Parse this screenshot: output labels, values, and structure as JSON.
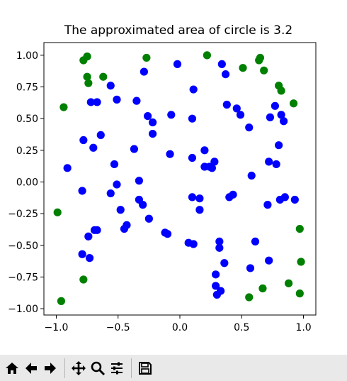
{
  "chart_data": {
    "type": "scatter",
    "title": "The approximated area of circle is 3.2",
    "xlabel": "",
    "ylabel": "",
    "xlim": [
      -1.1,
      1.1
    ],
    "ylim": [
      -1.05,
      1.1
    ],
    "xticks": [
      -1.0,
      -0.5,
      0.0,
      0.5,
      1.0
    ],
    "yticks": [
      -1.0,
      -0.75,
      -0.5,
      -0.25,
      0.0,
      0.25,
      0.5,
      0.75,
      1.0
    ],
    "xtick_labels": [
      "−1.0",
      "−0.5",
      "0.0",
      "0.5",
      "1.0"
    ],
    "ytick_labels": [
      "−1.00",
      "−0.75",
      "−0.50",
      "−0.25",
      "0.00",
      "0.25",
      "0.50",
      "0.75",
      "1.00"
    ],
    "grid": false,
    "series": [
      {
        "color": "#0000ff",
        "points": [
          [
            -0.02,
            0.93
          ],
          [
            -0.29,
            0.87
          ],
          [
            -0.56,
            0.76
          ],
          [
            -0.67,
            0.63
          ],
          [
            -0.72,
            0.63
          ],
          [
            -0.51,
            0.65
          ],
          [
            -0.35,
            0.64
          ],
          [
            -0.26,
            0.52
          ],
          [
            -0.22,
            0.47
          ],
          [
            -0.22,
            0.38
          ],
          [
            -0.64,
            0.37
          ],
          [
            -0.78,
            0.33
          ],
          [
            -0.7,
            0.27
          ],
          [
            -0.37,
            0.26
          ],
          [
            -0.08,
            0.22
          ],
          [
            -0.91,
            0.11
          ],
          [
            -0.53,
            0.14
          ],
          [
            -0.33,
            0.01
          ],
          [
            -0.51,
            -0.02
          ],
          [
            -0.56,
            -0.09
          ],
          [
            -0.79,
            -0.07
          ],
          [
            -0.33,
            -0.14
          ],
          [
            -0.3,
            -0.18
          ],
          [
            -0.48,
            -0.22
          ],
          [
            -0.25,
            -0.29
          ],
          [
            -0.43,
            -0.34
          ],
          [
            -0.45,
            -0.37
          ],
          [
            -0.69,
            -0.38
          ],
          [
            -0.67,
            -0.38
          ],
          [
            -0.74,
            -0.43
          ],
          [
            -0.12,
            -0.4
          ],
          [
            -0.1,
            -0.41
          ],
          [
            -0.79,
            -0.57
          ],
          [
            -0.73,
            -0.6
          ],
          [
            -0.07,
            0.53
          ],
          [
            0.11,
            0.73
          ],
          [
            0.34,
            0.93
          ],
          [
            0.37,
            0.85
          ],
          [
            0.1,
            0.5
          ],
          [
            0.38,
            0.61
          ],
          [
            0.46,
            0.58
          ],
          [
            0.49,
            0.53
          ],
          [
            0.56,
            0.43
          ],
          [
            0.1,
            0.19
          ],
          [
            0.2,
            0.25
          ],
          [
            0.24,
            0.12
          ],
          [
            0.28,
            0.16
          ],
          [
            0.26,
            0.11
          ],
          [
            0.2,
            0.12
          ],
          [
            0.1,
            -0.12
          ],
          [
            0.16,
            -0.13
          ],
          [
            0.16,
            -0.22
          ],
          [
            0.4,
            -0.12
          ],
          [
            0.43,
            -0.1
          ],
          [
            0.58,
            0.05
          ],
          [
            0.72,
            0.16
          ],
          [
            0.73,
            0.51
          ],
          [
            0.77,
            0.6
          ],
          [
            0.82,
            0.53
          ],
          [
            0.84,
            0.48
          ],
          [
            0.78,
            0.14
          ],
          [
            0.8,
            0.29
          ],
          [
            0.81,
            -0.14
          ],
          [
            0.85,
            -0.12
          ],
          [
            0.71,
            -0.18
          ],
          [
            0.93,
            -0.14
          ],
          [
            0.07,
            -0.48
          ],
          [
            0.11,
            -0.49
          ],
          [
            0.32,
            -0.47
          ],
          [
            0.32,
            -0.52
          ],
          [
            0.61,
            -0.47
          ],
          [
            0.36,
            -0.64
          ],
          [
            0.57,
            -0.68
          ],
          [
            0.72,
            -0.62
          ],
          [
            0.29,
            -0.73
          ],
          [
            0.29,
            -0.82
          ],
          [
            0.33,
            -0.86
          ],
          [
            0.3,
            -0.89
          ]
        ]
      },
      {
        "color": "#008000",
        "points": [
          [
            -0.78,
            0.96
          ],
          [
            -0.75,
            0.99
          ],
          [
            -0.27,
            0.98
          ],
          [
            0.22,
            1.0
          ],
          [
            0.51,
            0.9
          ],
          [
            0.64,
            0.96
          ],
          [
            0.65,
            0.98
          ],
          [
            0.68,
            0.88
          ],
          [
            -0.62,
            0.83
          ],
          [
            -0.75,
            0.83
          ],
          [
            -0.74,
            0.78
          ],
          [
            0.8,
            0.76
          ],
          [
            0.82,
            0.72
          ],
          [
            -0.94,
            0.59
          ],
          [
            0.92,
            0.62
          ],
          [
            -0.99,
            -0.24
          ],
          [
            0.97,
            -0.37
          ],
          [
            0.98,
            -0.63
          ],
          [
            -0.78,
            -0.77
          ],
          [
            0.88,
            -0.8
          ],
          [
            0.67,
            -0.84
          ],
          [
            0.97,
            -0.88
          ],
          [
            -0.96,
            -0.94
          ],
          [
            0.56,
            -0.91
          ]
        ]
      }
    ]
  },
  "toolbar": {
    "buttons": [
      {
        "name": "home-button",
        "icon": "home-icon"
      },
      {
        "name": "back-button",
        "icon": "arrow-left-icon"
      },
      {
        "name": "forward-button",
        "icon": "arrow-right-icon"
      },
      {
        "name": "pan-button",
        "icon": "move-icon"
      },
      {
        "name": "zoom-button",
        "icon": "magnifier-icon"
      },
      {
        "name": "configure-button",
        "icon": "sliders-icon"
      },
      {
        "name": "save-button",
        "icon": "floppy-disk-icon"
      }
    ]
  }
}
